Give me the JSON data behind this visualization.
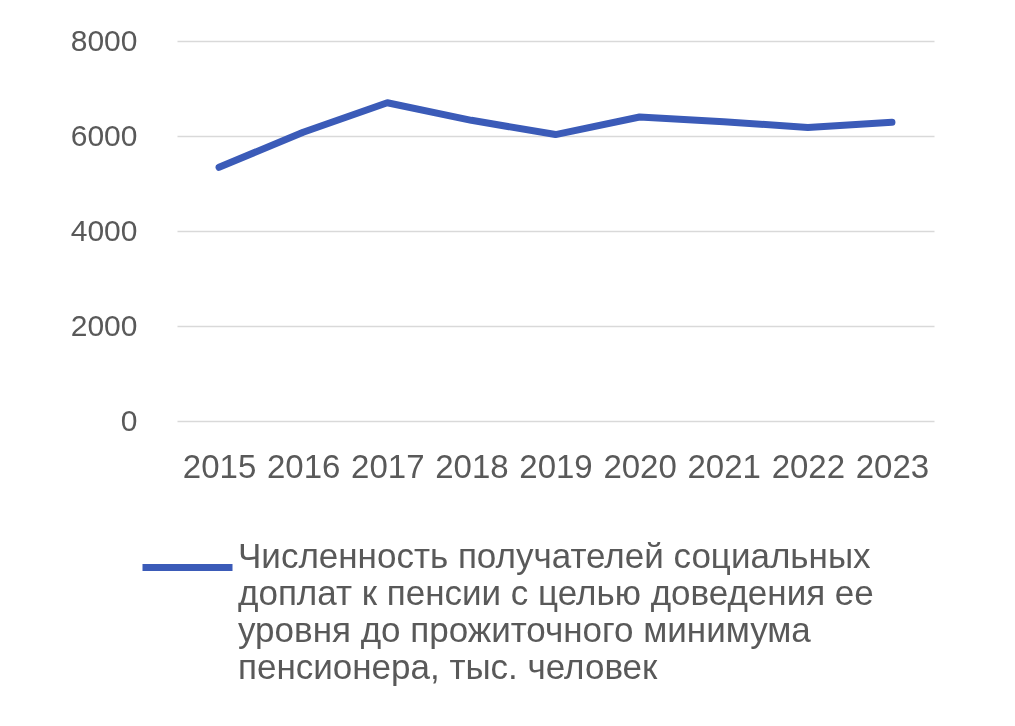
{
  "chart_data": {
    "type": "line",
    "categories": [
      "2015",
      "2016",
      "2017",
      "2018",
      "2019",
      "2020",
      "2021",
      "2022",
      "2023"
    ],
    "series": [
      {
        "name": "Численность получателей социальных доплат к пенсии с целью доведения ее уровня до прожиточного минимума пенсионера, тыс. человек",
        "color": "#3b5bb8",
        "values": [
          5340,
          6080,
          6700,
          6330,
          6030,
          6400,
          6300,
          6180,
          6290
        ]
      }
    ],
    "ylim": [
      0,
      8000
    ],
    "yticks": [
      0,
      2000,
      4000,
      6000,
      8000
    ],
    "grid": "y",
    "legend": "bottom",
    "line_style": "solid"
  }
}
